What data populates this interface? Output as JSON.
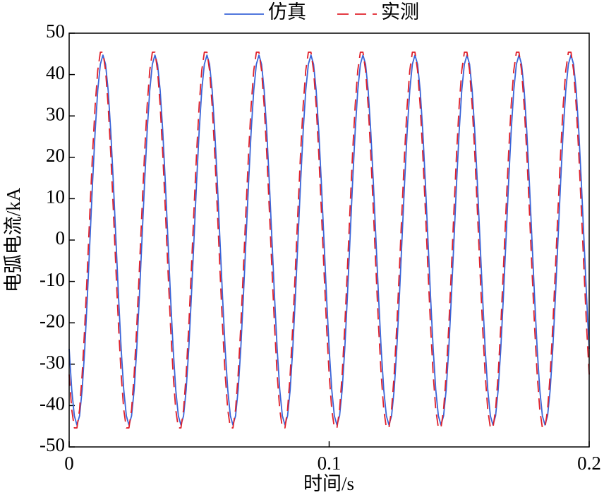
{
  "chart_data": {
    "type": "line",
    "xlabel": "时间/s",
    "ylabel": "电弧电流/kA",
    "xlim": [
      0,
      0.2
    ],
    "xticks": [
      0,
      0.1,
      0.2
    ],
    "ylim": [
      -50,
      50
    ],
    "yticks": [
      -50,
      -40,
      -30,
      -20,
      -10,
      0,
      10,
      20,
      30,
      40,
      50
    ],
    "grid": false,
    "legend": "top",
    "x": [
      0,
      0.001,
      0.002,
      0.003,
      0.004,
      0.005,
      0.006,
      0.007,
      0.008,
      0.009,
      0.01,
      0.011,
      0.012,
      0.013,
      0.014,
      0.015,
      0.016,
      0.017,
      0.018,
      0.019,
      0.02,
      0.021,
      0.022,
      0.023,
      0.024,
      0.025,
      0.026,
      0.027,
      0.028,
      0.029,
      0.03,
      0.031,
      0.032,
      0.033,
      0.034,
      0.035,
      0.036,
      0.037,
      0.038,
      0.039,
      0.04,
      0.041,
      0.042,
      0.043,
      0.044,
      0.045,
      0.046,
      0.047,
      0.048,
      0.049,
      0.05,
      0.051,
      0.052,
      0.053,
      0.054,
      0.055,
      0.056,
      0.057,
      0.058,
      0.059,
      0.06,
      0.061,
      0.062,
      0.063,
      0.064,
      0.065,
      0.066,
      0.067,
      0.068,
      0.069,
      0.07,
      0.071,
      0.072,
      0.073,
      0.074,
      0.075,
      0.076,
      0.077,
      0.078,
      0.079,
      0.08,
      0.081,
      0.082,
      0.083,
      0.084,
      0.085,
      0.086,
      0.087,
      0.088,
      0.089,
      0.09,
      0.091,
      0.092,
      0.093,
      0.094,
      0.095,
      0.096,
      0.097,
      0.098,
      0.099,
      0.1,
      0.101,
      0.102,
      0.103,
      0.104,
      0.105,
      0.106,
      0.107,
      0.108,
      0.109,
      0.11,
      0.111,
      0.112,
      0.113,
      0.114,
      0.115,
      0.116,
      0.117,
      0.118,
      0.119,
      0.12,
      0.121,
      0.122,
      0.123,
      0.124,
      0.125,
      0.126,
      0.127,
      0.128,
      0.129,
      0.13,
      0.131,
      0.132,
      0.133,
      0.134,
      0.135,
      0.136,
      0.137,
      0.138,
      0.139,
      0.14,
      0.141,
      0.142,
      0.143,
      0.144,
      0.145,
      0.146,
      0.147,
      0.148,
      0.149,
      0.15,
      0.151,
      0.152,
      0.153,
      0.154,
      0.155,
      0.156,
      0.157,
      0.158,
      0.159,
      0.16,
      0.161,
      0.162,
      0.163,
      0.164,
      0.165,
      0.166,
      0.167,
      0.168,
      0.169,
      0.17,
      0.171,
      0.172,
      0.173,
      0.174,
      0.175,
      0.176,
      0.177,
      0.178,
      0.179,
      0.18,
      0.181,
      0.182,
      0.183,
      0.184,
      0.185,
      0.186,
      0.187,
      0.188,
      0.189,
      0.19,
      0.191,
      0.192,
      0.193,
      0.194,
      0.195,
      0.196,
      0.197,
      0.198,
      0.199,
      0.2
    ],
    "series": [
      {
        "name": "仿真",
        "color": "#3a64d8",
        "dash": false,
        "values": [
          -26.3,
          -36.2,
          -42.5,
          -44.7,
          -42.5,
          -36.2,
          -26.3,
          -13.8,
          0,
          13.8,
          26.3,
          36.2,
          42.5,
          44.7,
          42.5,
          36.2,
          26.3,
          13.8,
          0,
          -13.8,
          -26.3,
          -36.2,
          -42.5,
          -44.7,
          -42.5,
          -36.2,
          -26.3,
          -13.8,
          0,
          13.8,
          26.3,
          36.2,
          42.5,
          44.7,
          42.5,
          36.2,
          26.3,
          13.8,
          0,
          -13.8,
          -26.3,
          -36.2,
          -42.5,
          -44.7,
          -42.5,
          -36.2,
          -26.3,
          -13.8,
          0,
          13.8,
          26.3,
          36.2,
          42.5,
          44.7,
          42.5,
          36.2,
          26.3,
          13.8,
          0,
          -13.8,
          -26.3,
          -36.2,
          -42.5,
          -44.7,
          -42.5,
          -36.2,
          -26.3,
          -13.8,
          0,
          13.8,
          26.3,
          36.2,
          42.5,
          44.7,
          42.5,
          36.2,
          26.3,
          13.8,
          0,
          -13.8,
          -26.3,
          -36.2,
          -42.5,
          -44.7,
          -42.5,
          -36.2,
          -26.3,
          -13.8,
          0,
          13.8,
          26.3,
          36.2,
          42.5,
          44.7,
          42.5,
          36.2,
          26.3,
          13.8,
          0,
          -13.8,
          -26.3,
          -36.2,
          -42.5,
          -44.7,
          -42.5,
          -36.2,
          -26.3,
          -13.8,
          0,
          13.8,
          26.3,
          36.2,
          42.5,
          44.7,
          42.5,
          36.2,
          26.3,
          13.8,
          0,
          -13.8,
          -26.3,
          -36.2,
          -42.5,
          -44.7,
          -42.5,
          -36.2,
          -26.3,
          -13.8,
          0,
          13.8,
          26.3,
          36.2,
          42.5,
          44.7,
          42.5,
          36.2,
          26.3,
          13.8,
          0,
          -13.8,
          -26.3,
          -36.2,
          -42.5,
          -44.7,
          -42.5,
          -36.2,
          -26.3,
          -13.8,
          0,
          13.8,
          26.3,
          36.2,
          42.5,
          44.7,
          42.5,
          36.2,
          26.3,
          13.8,
          0,
          -13.8,
          -26.3,
          -36.2,
          -42.5,
          -44.7,
          -42.5,
          -36.2,
          -26.3,
          -13.8,
          0,
          13.8,
          26.3,
          36.2,
          42.5,
          44.7,
          42.5,
          36.2,
          26.3,
          13.8,
          0,
          -13.8,
          -26.3,
          -36.2,
          -42.5,
          -44.7,
          -42.5,
          -36.2,
          -26.3,
          -13.8,
          0,
          13.8,
          26.3,
          36.2,
          42.5,
          44.7,
          42.5,
          36.2,
          26.3,
          13.8,
          0,
          -13.8,
          -26.3
        ]
      },
      {
        "name": "实测",
        "color": "#e0202a",
        "dash": true,
        "values": [
          -32.5,
          -41,
          -45.4,
          -45.4,
          -41,
          -32.5,
          -20.9,
          -7.2,
          7.2,
          20.9,
          32.5,
          41,
          45.4,
          45.4,
          41,
          32.5,
          20.9,
          7.2,
          -7.2,
          -20.9,
          -32.5,
          -41,
          -45.4,
          -45.4,
          -41,
          -32.5,
          -20.9,
          -7.2,
          7.2,
          20.9,
          32.5,
          41,
          45.4,
          45.4,
          41,
          32.5,
          20.9,
          7.2,
          -7.2,
          -20.9,
          -32.5,
          -41,
          -45.4,
          -45.4,
          -41,
          -32.5,
          -20.9,
          -7.2,
          7.2,
          20.9,
          32.5,
          41,
          45.4,
          45.4,
          41,
          32.5,
          20.9,
          7.2,
          -7.2,
          -20.9,
          -32.5,
          -41,
          -45.4,
          -45.4,
          -41,
          -32.5,
          -20.9,
          -7.2,
          7.2,
          20.9,
          32.5,
          41,
          45.4,
          45.4,
          41,
          32.5,
          20.9,
          7.2,
          -7.2,
          -20.9,
          -32.5,
          -41,
          -45.4,
          -45.4,
          -41,
          -32.5,
          -20.9,
          -7.2,
          7.2,
          20.9,
          32.5,
          41,
          45.4,
          45.4,
          41,
          32.5,
          20.9,
          7.2,
          -7.2,
          -20.9,
          -32.5,
          -41,
          -45.4,
          -45.4,
          -41,
          -32.5,
          -20.9,
          -7.2,
          7.2,
          20.9,
          32.5,
          41,
          45.4,
          45.4,
          41,
          32.5,
          20.9,
          7.2,
          -7.2,
          -20.9,
          -32.5,
          -41,
          -45.4,
          -45.4,
          -41,
          -32.5,
          -20.9,
          -7.2,
          7.2,
          20.9,
          32.5,
          41,
          45.4,
          45.4,
          41,
          32.5,
          20.9,
          7.2,
          -7.2,
          -20.9,
          -32.5,
          -41,
          -45.4,
          -45.4,
          -41,
          -32.5,
          -20.9,
          -7.2,
          7.2,
          20.9,
          32.5,
          41,
          45.4,
          45.4,
          41,
          32.5,
          20.9,
          7.2,
          -7.2,
          -20.9,
          -32.5,
          -41,
          -45.4,
          -45.4,
          -41,
          -32.5,
          -20.9,
          -7.2,
          7.2,
          20.9,
          32.5,
          41,
          45.4,
          45.4,
          41,
          32.5,
          20.9,
          7.2,
          -7.2,
          -20.9,
          -32.5,
          -41,
          -45.4,
          -45.4,
          -41,
          -32.5,
          -20.9,
          -7.2,
          7.2,
          20.9,
          32.5,
          41,
          45.4,
          45.4,
          41,
          32.5,
          20.9,
          7.2,
          -7.2,
          -20.9,
          -32.5
        ]
      }
    ]
  }
}
